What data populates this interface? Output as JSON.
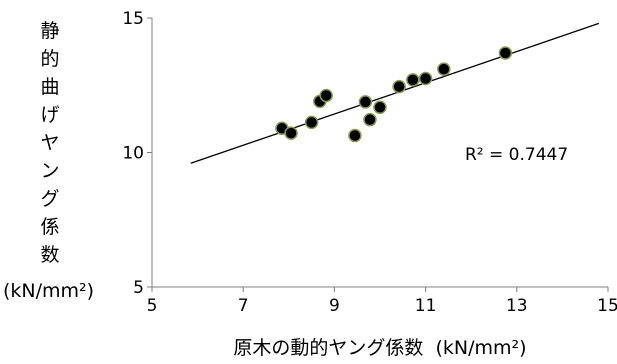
{
  "chart_data": {
    "type": "scatter",
    "xlabel": "原木の動的ヤング係数",
    "xlabel_unit": "(kN/mm²)",
    "ylabel_chars": [
      "静",
      "的",
      "曲",
      "げ",
      "ヤ",
      "ン",
      "グ",
      "係",
      "数"
    ],
    "ylabel_unit": "(kN/mm²)",
    "xlim": [
      5,
      15
    ],
    "ylim": [
      5,
      15
    ],
    "x_ticks": [
      "5",
      "7",
      "9",
      "11",
      "13",
      "15"
    ],
    "y_ticks": [
      "5",
      "10",
      "15"
    ],
    "grid": false,
    "annotation": "R² = 0.7447",
    "points": [
      {
        "x": 7.85,
        "y": 10.9
      },
      {
        "x": 8.05,
        "y": 10.72
      },
      {
        "x": 8.5,
        "y": 11.12
      },
      {
        "x": 8.68,
        "y": 11.9
      },
      {
        "x": 8.82,
        "y": 12.12
      },
      {
        "x": 9.45,
        "y": 10.63
      },
      {
        "x": 9.68,
        "y": 11.88
      },
      {
        "x": 9.78,
        "y": 11.22
      },
      {
        "x": 10.0,
        "y": 11.68
      },
      {
        "x": 10.42,
        "y": 12.45
      },
      {
        "x": 10.72,
        "y": 12.7
      },
      {
        "x": 11.0,
        "y": 12.75
      },
      {
        "x": 11.4,
        "y": 13.1
      },
      {
        "x": 12.75,
        "y": 13.7
      }
    ],
    "trendline": {
      "x": [
        5.85,
        14.8
      ],
      "y": [
        9.6,
        14.8
      ]
    },
    "marker_color": "#000000",
    "marker_edge_color": "#8a9a50",
    "line_color": "#000000"
  }
}
